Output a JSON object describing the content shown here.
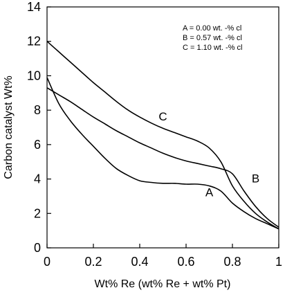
{
  "chart_data": {
    "type": "line",
    "xlabel": "Wt% Re (wt% Re + wt% Pt)",
    "ylabel": "Carbon catalyst Wt%",
    "xlim": [
      0,
      1
    ],
    "ylim": [
      0,
      14
    ],
    "x_ticks": [
      {
        "value": 0,
        "label": "0"
      },
      {
        "value": 0.2,
        "label": "0.2"
      },
      {
        "value": 0.4,
        "label": "0.4"
      },
      {
        "value": 0.6,
        "label": "0.6"
      },
      {
        "value": 0.8,
        "label": "0.8"
      },
      {
        "value": 1,
        "label": "1"
      }
    ],
    "y_ticks": [
      {
        "value": 0,
        "label": "0"
      },
      {
        "value": 2,
        "label": "2"
      },
      {
        "value": 4,
        "label": "4"
      },
      {
        "value": 6,
        "label": "6"
      },
      {
        "value": 8,
        "label": "8"
      },
      {
        "value": 10,
        "label": "10"
      },
      {
        "value": 12,
        "label": "12"
      },
      {
        "value": 14,
        "label": "14"
      }
    ],
    "grid": false,
    "legend_position": "top-right",
    "legend_entries": [
      "A = 0.00 wt. -% cl",
      "B = 0.57 wt. -% cl",
      "C = 1.10 wt. -% cl"
    ],
    "series": [
      {
        "name": "A",
        "x": [
          0,
          0.05,
          0.1,
          0.15,
          0.2,
          0.25,
          0.3,
          0.35,
          0.4,
          0.45,
          0.5,
          0.55,
          0.6,
          0.65,
          0.7,
          0.75,
          0.8,
          0.85,
          0.9,
          0.95,
          1.0
        ],
        "y": [
          9.9,
          8.4,
          7.4,
          6.6,
          5.9,
          5.2,
          4.6,
          4.2,
          3.9,
          3.8,
          3.75,
          3.75,
          3.7,
          3.7,
          3.6,
          3.3,
          2.6,
          2.1,
          1.7,
          1.4,
          1.1
        ],
        "label_at": [
          0.7,
          3.0
        ]
      },
      {
        "name": "B",
        "x": [
          0,
          0.05,
          0.1,
          0.15,
          0.2,
          0.25,
          0.3,
          0.35,
          0.4,
          0.45,
          0.5,
          0.55,
          0.6,
          0.65,
          0.7,
          0.75,
          0.8,
          0.85,
          0.9,
          0.95,
          1.0
        ],
        "y": [
          9.3,
          8.9,
          8.5,
          8.05,
          7.6,
          7.2,
          6.8,
          6.45,
          6.1,
          5.8,
          5.5,
          5.25,
          5.05,
          4.9,
          4.75,
          4.6,
          4.3,
          3.3,
          2.4,
          1.7,
          1.2
        ],
        "label_at": [
          0.9,
          3.8
        ]
      },
      {
        "name": "C",
        "x": [
          0,
          0.05,
          0.1,
          0.15,
          0.2,
          0.25,
          0.3,
          0.35,
          0.4,
          0.45,
          0.5,
          0.55,
          0.6,
          0.65,
          0.7,
          0.75,
          0.8,
          0.85,
          0.9,
          0.95,
          1.0
        ],
        "y": [
          12.0,
          11.4,
          10.8,
          10.2,
          9.6,
          9.05,
          8.5,
          8.0,
          7.6,
          7.25,
          6.95,
          6.7,
          6.45,
          6.2,
          5.8,
          5.0,
          3.6,
          2.7,
          2.0,
          1.5,
          1.1
        ],
        "label_at": [
          0.5,
          7.4
        ]
      }
    ]
  }
}
